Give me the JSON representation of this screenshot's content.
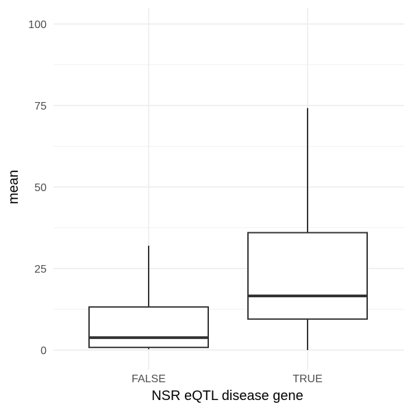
{
  "chart_data": {
    "type": "boxplot",
    "xlabel": "NSR eQTL disease gene",
    "ylabel": "mean",
    "categories": [
      "FALSE",
      "TRUE"
    ],
    "ylim": [
      -5,
      105
    ],
    "yticks": [
      0,
      25,
      50,
      75,
      100
    ],
    "grid": true,
    "boxes": [
      {
        "category": "FALSE",
        "whisker_low": 0.3,
        "q1": 0.8,
        "median": 3.8,
        "q3": 13.2,
        "whisker_high": 32
      },
      {
        "category": "TRUE",
        "whisker_low": 0,
        "q1": 9.5,
        "median": 16.6,
        "q3": 36,
        "whisker_high": 74.2
      }
    ]
  },
  "colors": {
    "box_stroke": "#333333",
    "box_fill": "#ffffff",
    "grid_major": "#ebebeb",
    "grid_minor": "#f2f2f2",
    "tick_text": "#4d4d4d"
  }
}
